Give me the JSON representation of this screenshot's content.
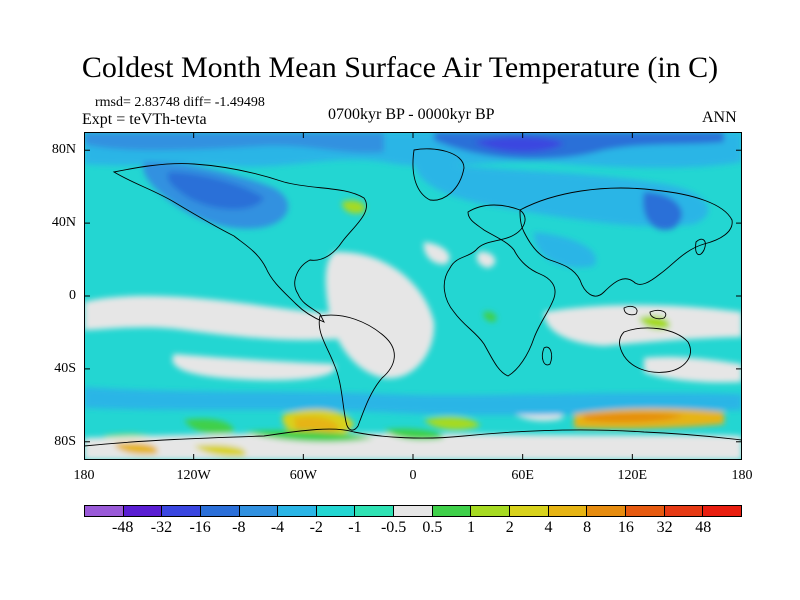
{
  "title": "Coldest Month Mean Surface Air Temperature (in C)",
  "stats": "rmsd= 2.83748 diff= -1.49498",
  "experiment": "Expt = teVTh-tevta",
  "period": "0700kyr BP - 0000kyr BP",
  "season": "ANN",
  "map": {
    "lat_labels": [
      "80N",
      "40N",
      "0",
      "40S",
      "80S"
    ],
    "lat_values": [
      80,
      40,
      0,
      -40,
      -80
    ],
    "lon_labels": [
      "180",
      "120W",
      "60W",
      "0",
      "60E",
      "120E",
      "180"
    ],
    "lon_values": [
      -180,
      -120,
      -60,
      0,
      60,
      120,
      180
    ],
    "lat_range": [
      -90,
      90
    ],
    "lon_range": [
      -180,
      180
    ]
  },
  "colorbar": {
    "labels": [
      "-48",
      "-32",
      "-16",
      "-8",
      "-4",
      "-2",
      "-1",
      "-0.5",
      "0.5",
      "1",
      "2",
      "4",
      "8",
      "16",
      "32",
      "48"
    ],
    "colors": [
      "#9a5ad8",
      "#5a1ed2",
      "#3a46e0",
      "#2b6fd8",
      "#3191e0",
      "#2ab5e6",
      "#23d6d2",
      "#2fe2b4",
      "#e6e6e6",
      "#3fd04a",
      "#a6da22",
      "#d8d21c",
      "#e6b414",
      "#e68c10",
      "#e65a10",
      "#e63a14",
      "#e81e10"
    ]
  }
}
